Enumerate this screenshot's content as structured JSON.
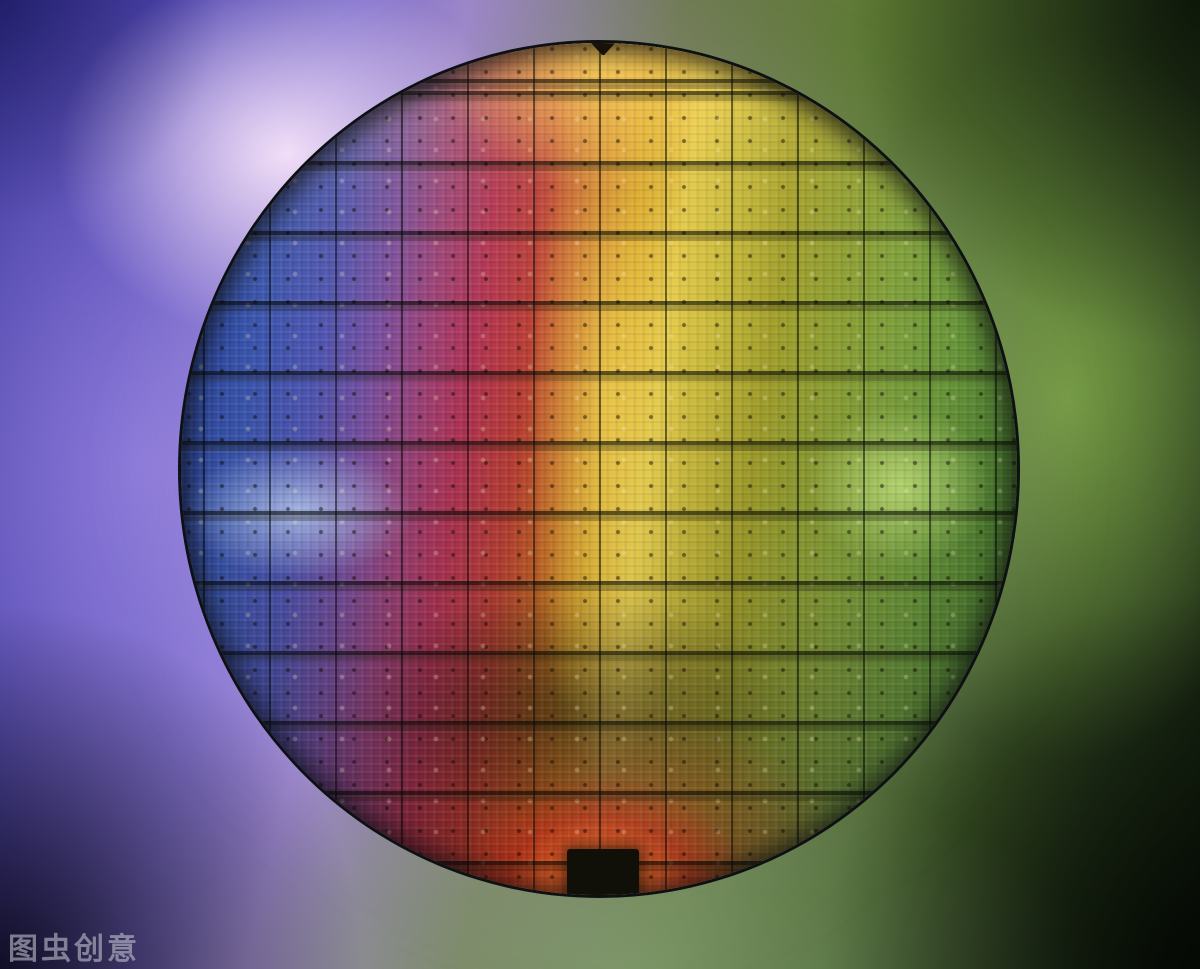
{
  "watermark": {
    "text": "图虫创意"
  },
  "scene": {
    "subject": "silicon-wafer-photograph",
    "palette": {
      "background_top_left": "#2f2c92",
      "background_left_glow": "#9c86d8",
      "background_top_left_highlight": "#f3e2f6",
      "background_right_green": "#5d7a33",
      "background_corners_dark": "#0d130b",
      "wafer_spectrum": [
        "#1f2f7e",
        "#3a55ae",
        "#7a4f9f",
        "#9c4279",
        "#b23355",
        "#bc3f33",
        "#c66a22",
        "#d39a20",
        "#e3c948",
        "#a29f2a",
        "#7f9f3a",
        "#699739",
        "#4c7c2e",
        "#355c24"
      ],
      "center_stripe": "#f5e060",
      "top_glow": "#ffd85c",
      "bottom_glow": "#ff7a28",
      "left_highlight": "#bacef0",
      "right_highlight": "#cee884"
    }
  }
}
